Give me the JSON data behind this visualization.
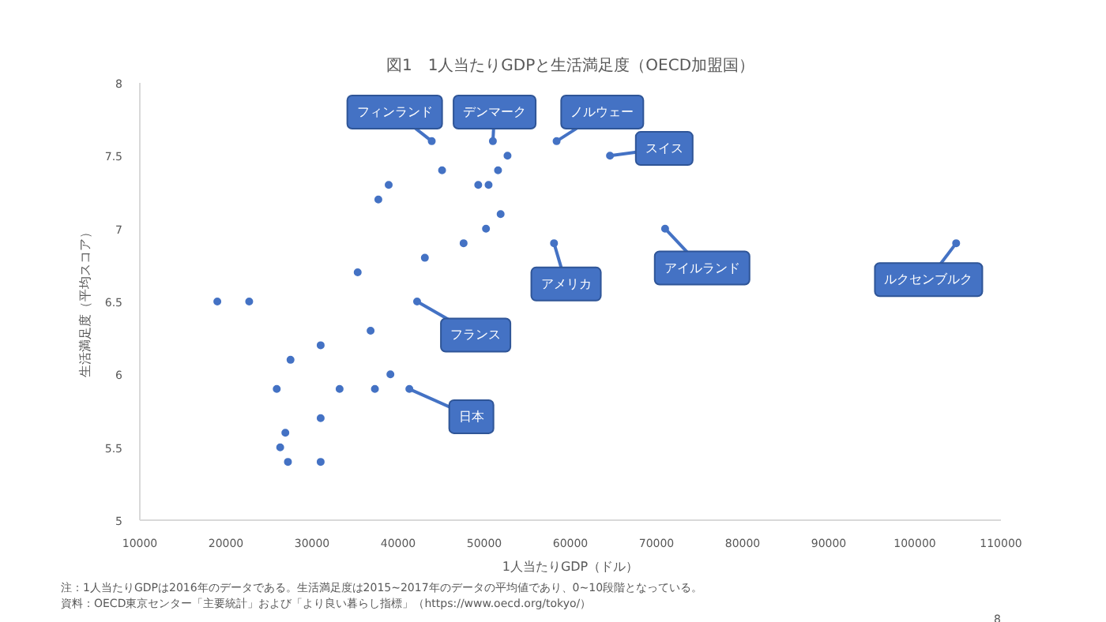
{
  "chart_data": {
    "type": "scatter",
    "title": "図1　1人当たりGDPと生活満足度（OECD加盟国）",
    "xlabel": "1人当たりGDP（ドル）",
    "ylabel": "生活満足度（平均スコア）",
    "x": [
      19000,
      22700,
      42200,
      36800,
      31000,
      27500,
      25900,
      33200,
      37300,
      41300,
      39100,
      31000,
      26900,
      26300,
      27200,
      31000,
      43900,
      51000,
      58400,
      64600,
      52700,
      45100,
      51600,
      38900,
      49300,
      50500,
      37700,
      51900,
      50200,
      47600,
      58100,
      43100,
      35300,
      71000,
      104800
    ],
    "values": [
      6.5,
      6.5,
      6.5,
      6.3,
      6.2,
      6.1,
      5.9,
      5.9,
      5.9,
      5.9,
      6.0,
      5.7,
      5.6,
      5.5,
      5.4,
      5.4,
      7.6,
      7.6,
      7.6,
      7.5,
      7.5,
      7.4,
      7.4,
      7.3,
      7.3,
      7.3,
      7.2,
      7.1,
      7.0,
      6.9,
      6.9,
      6.8,
      6.7,
      7.0,
      6.9
    ],
    "color": "#4472c4",
    "marker": "circle",
    "grid": false,
    "xlim": [
      10000,
      110000
    ],
    "ylim": [
      5,
      8
    ],
    "xticks": [
      10000,
      20000,
      30000,
      40000,
      50000,
      60000,
      70000,
      80000,
      90000,
      100000,
      110000
    ],
    "yticks": [
      5,
      5.5,
      6,
      6.5,
      7,
      7.5,
      8
    ],
    "annotations": [
      {
        "text": "フィンランド",
        "x": 43900,
        "y": 7.6
      },
      {
        "text": "デンマーク",
        "x": 51000,
        "y": 7.6
      },
      {
        "text": "ノルウェー",
        "x": 58400,
        "y": 7.6
      },
      {
        "text": "スイス",
        "x": 64600,
        "y": 7.5
      },
      {
        "text": "アメリカ",
        "x": 58100,
        "y": 6.9
      },
      {
        "text": "アイルランド",
        "x": 71000,
        "y": 7.0
      },
      {
        "text": "ルクセンブルク",
        "x": 104800,
        "y": 6.9
      },
      {
        "text": "フランス",
        "x": 42200,
        "y": 6.5
      },
      {
        "text": "日本",
        "x": 41300,
        "y": 5.9
      },
      "注：1人当たりGDPは2016年のデータである。生活満足度は2015~2017年のデータの平均値であり、0~10段階となっている。",
      "資料：OECD東京センター「主要統計」および「より良い暮らし指標」（https://www.oecd.org/tokyo/）",
      "8"
    ]
  }
}
